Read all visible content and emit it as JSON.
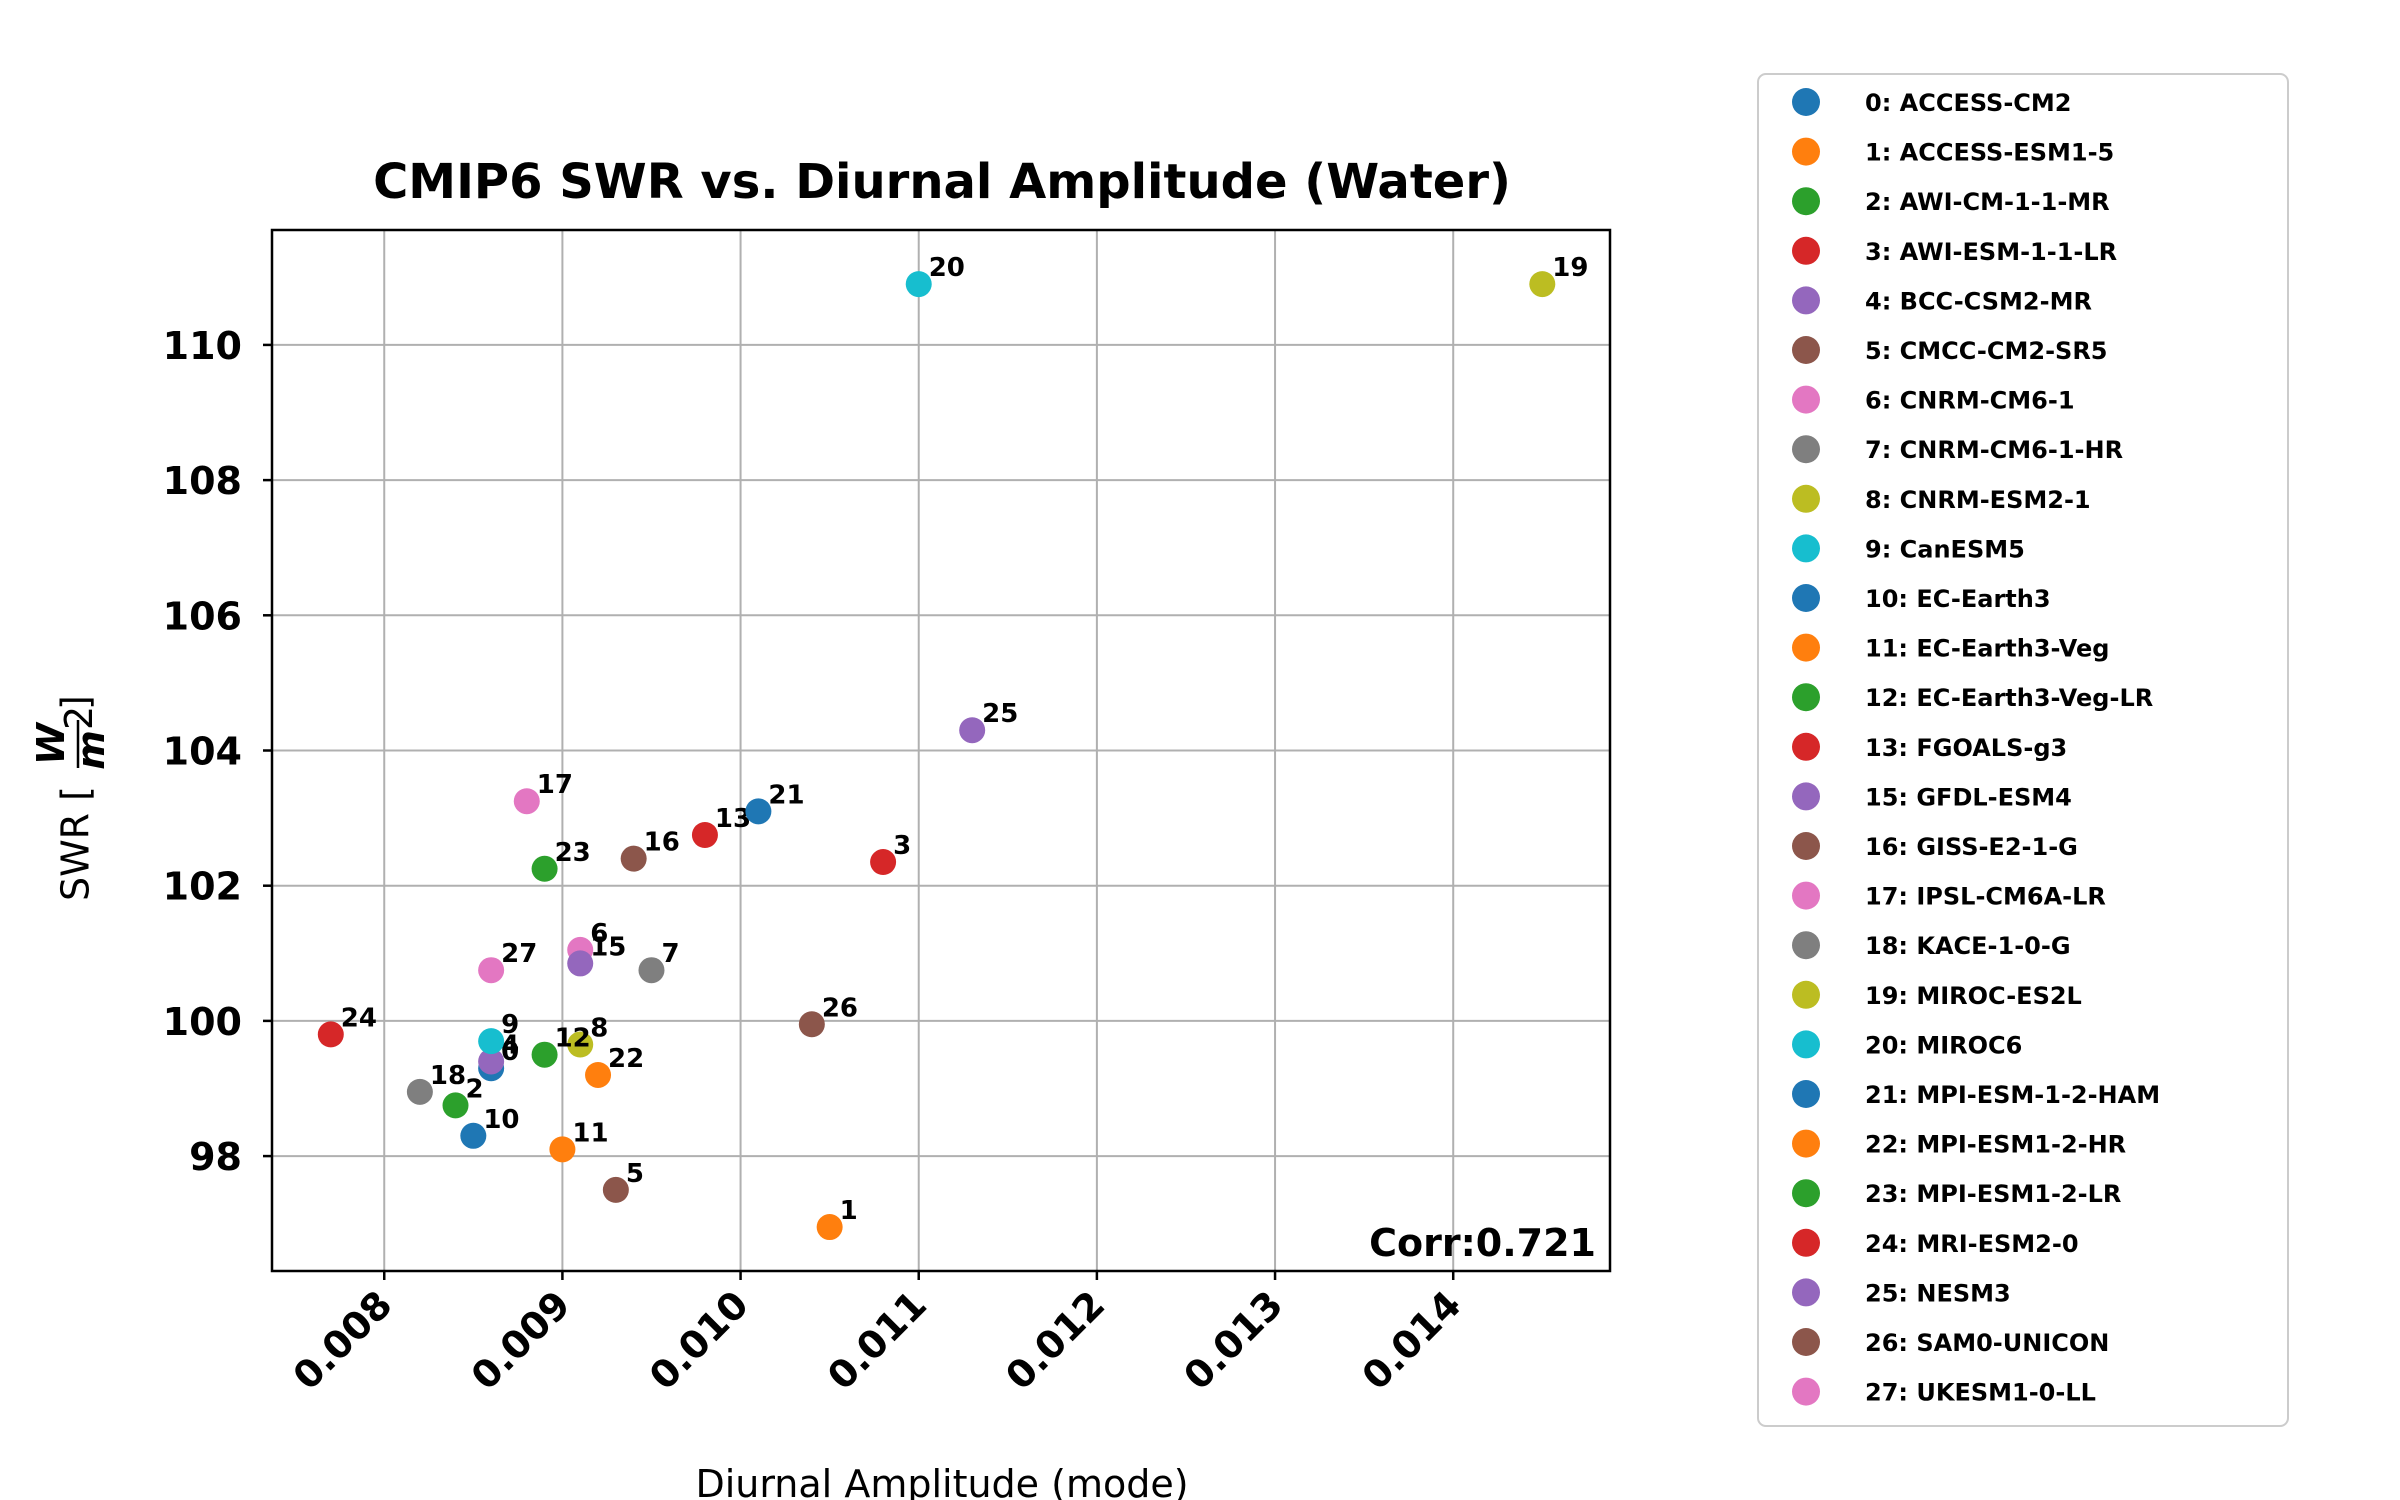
{
  "chart_data": {
    "type": "scatter",
    "title": "CMIP6 SWR vs. Diurnal Amplitude (Water)",
    "xlabel": "Diurnal Amplitude (mode)",
    "ylabel_prefix": "SWR [",
    "ylabel_num": "W",
    "ylabel_den": "m",
    "ylabel_den_exp": "2",
    "ylabel_suffix": "]",
    "xlim": [
      0.00737,
      0.01488
    ],
    "ylim": [
      96.3,
      111.7
    ],
    "xticks": [
      0.008,
      0.009,
      0.01,
      0.011,
      0.012,
      0.013,
      0.014
    ],
    "xtick_labels": [
      "0.008",
      "0.009",
      "0.010",
      "0.011",
      "0.012",
      "0.013",
      "0.014"
    ],
    "yticks": [
      98,
      100,
      102,
      104,
      106,
      108,
      110
    ],
    "ytick_labels": [
      "98",
      "100",
      "102",
      "104",
      "106",
      "108",
      "110"
    ],
    "grid": true,
    "annotation": "Corr:0.721",
    "legend_position": "outside right",
    "points": [
      {
        "id": "0",
        "model": "ACCESS-CM2",
        "x": 0.0086,
        "y": 99.3,
        "color": "#1f77b4"
      },
      {
        "id": "1",
        "model": "ACCESS-ESM1-5",
        "x": 0.0105,
        "y": 96.95,
        "color": "#ff7f0e"
      },
      {
        "id": "2",
        "model": "AWI-CM-1-1-MR",
        "x": 0.0084,
        "y": 98.75,
        "color": "#2ca02c"
      },
      {
        "id": "3",
        "model": "AWI-ESM-1-1-LR",
        "x": 0.0108,
        "y": 102.35,
        "color": "#d62728"
      },
      {
        "id": "4",
        "model": "BCC-CSM2-MR",
        "x": 0.0086,
        "y": 99.4,
        "color": "#9467bd"
      },
      {
        "id": "5",
        "model": "CMCC-CM2-SR5",
        "x": 0.0093,
        "y": 97.5,
        "color": "#8c564b"
      },
      {
        "id": "6",
        "model": "CNRM-CM6-1",
        "x": 0.0091,
        "y": 101.05,
        "color": "#e377c2"
      },
      {
        "id": "7",
        "model": "CNRM-CM6-1-HR",
        "x": 0.0095,
        "y": 100.75,
        "color": "#7f7f7f"
      },
      {
        "id": "8",
        "model": "CNRM-ESM2-1",
        "x": 0.0091,
        "y": 99.65,
        "color": "#bcbd22"
      },
      {
        "id": "9",
        "model": "CanESM5",
        "x": 0.0086,
        "y": 99.7,
        "color": "#17becf"
      },
      {
        "id": "10",
        "model": "EC-Earth3",
        "x": 0.0085,
        "y": 98.3,
        "color": "#1f77b4"
      },
      {
        "id": "11",
        "model": "EC-Earth3-Veg",
        "x": 0.009,
        "y": 98.1,
        "color": "#ff7f0e"
      },
      {
        "id": "12",
        "model": "EC-Earth3-Veg-LR",
        "x": 0.0089,
        "y": 99.5,
        "color": "#2ca02c"
      },
      {
        "id": "13",
        "model": "FGOALS-g3",
        "x": 0.0098,
        "y": 102.75,
        "color": "#d62728"
      },
      {
        "id": "15",
        "model": "GFDL-ESM4",
        "x": 0.0091,
        "y": 100.85,
        "color": "#9467bd"
      },
      {
        "id": "16",
        "model": "GISS-E2-1-G",
        "x": 0.0094,
        "y": 102.4,
        "color": "#8c564b"
      },
      {
        "id": "17",
        "model": "IPSL-CM6A-LR",
        "x": 0.0088,
        "y": 103.25,
        "color": "#e377c2"
      },
      {
        "id": "18",
        "model": "KACE-1-0-G",
        "x": 0.0082,
        "y": 98.95,
        "color": "#7f7f7f"
      },
      {
        "id": "19",
        "model": "MIROC-ES2L",
        "x": 0.0145,
        "y": 110.9,
        "color": "#bcbd22"
      },
      {
        "id": "20",
        "model": "MIROC6",
        "x": 0.011,
        "y": 110.9,
        "color": "#17becf"
      },
      {
        "id": "21",
        "model": "MPI-ESM-1-2-HAM",
        "x": 0.0101,
        "y": 103.1,
        "color": "#1f77b4"
      },
      {
        "id": "22",
        "model": "MPI-ESM1-2-HR",
        "x": 0.0092,
        "y": 99.2,
        "color": "#ff7f0e"
      },
      {
        "id": "23",
        "model": "MPI-ESM1-2-LR",
        "x": 0.0089,
        "y": 102.25,
        "color": "#2ca02c"
      },
      {
        "id": "24",
        "model": "MRI-ESM2-0",
        "x": 0.0077,
        "y": 99.8,
        "color": "#d62728"
      },
      {
        "id": "25",
        "model": "NESM3",
        "x": 0.0113,
        "y": 104.3,
        "color": "#9467bd"
      },
      {
        "id": "26",
        "model": "SAM0-UNICON",
        "x": 0.0104,
        "y": 99.95,
        "color": "#8c564b"
      },
      {
        "id": "27",
        "model": "UKESM1-0-LL",
        "x": 0.0086,
        "y": 100.75,
        "color": "#e377c2"
      }
    ],
    "legend": [
      {
        "label": "0: ACCESS-CM2",
        "color": "#1f77b4"
      },
      {
        "label": "1: ACCESS-ESM1-5",
        "color": "#ff7f0e"
      },
      {
        "label": "2: AWI-CM-1-1-MR",
        "color": "#2ca02c"
      },
      {
        "label": "3: AWI-ESM-1-1-LR",
        "color": "#d62728"
      },
      {
        "label": "4: BCC-CSM2-MR",
        "color": "#9467bd"
      },
      {
        "label": "5: CMCC-CM2-SR5",
        "color": "#8c564b"
      },
      {
        "label": "6: CNRM-CM6-1",
        "color": "#e377c2"
      },
      {
        "label": "7: CNRM-CM6-1-HR",
        "color": "#7f7f7f"
      },
      {
        "label": "8: CNRM-ESM2-1",
        "color": "#bcbd22"
      },
      {
        "label": "9: CanESM5",
        "color": "#17becf"
      },
      {
        "label": "10: EC-Earth3",
        "color": "#1f77b4"
      },
      {
        "label": "11: EC-Earth3-Veg",
        "color": "#ff7f0e"
      },
      {
        "label": "12: EC-Earth3-Veg-LR",
        "color": "#2ca02c"
      },
      {
        "label": "13: FGOALS-g3",
        "color": "#d62728"
      },
      {
        "label": "15: GFDL-ESM4",
        "color": "#9467bd"
      },
      {
        "label": "16: GISS-E2-1-G",
        "color": "#8c564b"
      },
      {
        "label": "17: IPSL-CM6A-LR",
        "color": "#e377c2"
      },
      {
        "label": "18: KACE-1-0-G",
        "color": "#7f7f7f"
      },
      {
        "label": "19: MIROC-ES2L",
        "color": "#bcbd22"
      },
      {
        "label": "20: MIROC6",
        "color": "#17becf"
      },
      {
        "label": "21: MPI-ESM-1-2-HAM",
        "color": "#1f77b4"
      },
      {
        "label": "22: MPI-ESM1-2-HR",
        "color": "#ff7f0e"
      },
      {
        "label": "23: MPI-ESM1-2-LR",
        "color": "#2ca02c"
      },
      {
        "label": "24: MRI-ESM2-0",
        "color": "#d62728"
      },
      {
        "label": "25: NESM3",
        "color": "#9467bd"
      },
      {
        "label": "26: SAM0-UNICON",
        "color": "#8c564b"
      },
      {
        "label": "27: UKESM1-0-LL",
        "color": "#e377c2"
      }
    ]
  }
}
